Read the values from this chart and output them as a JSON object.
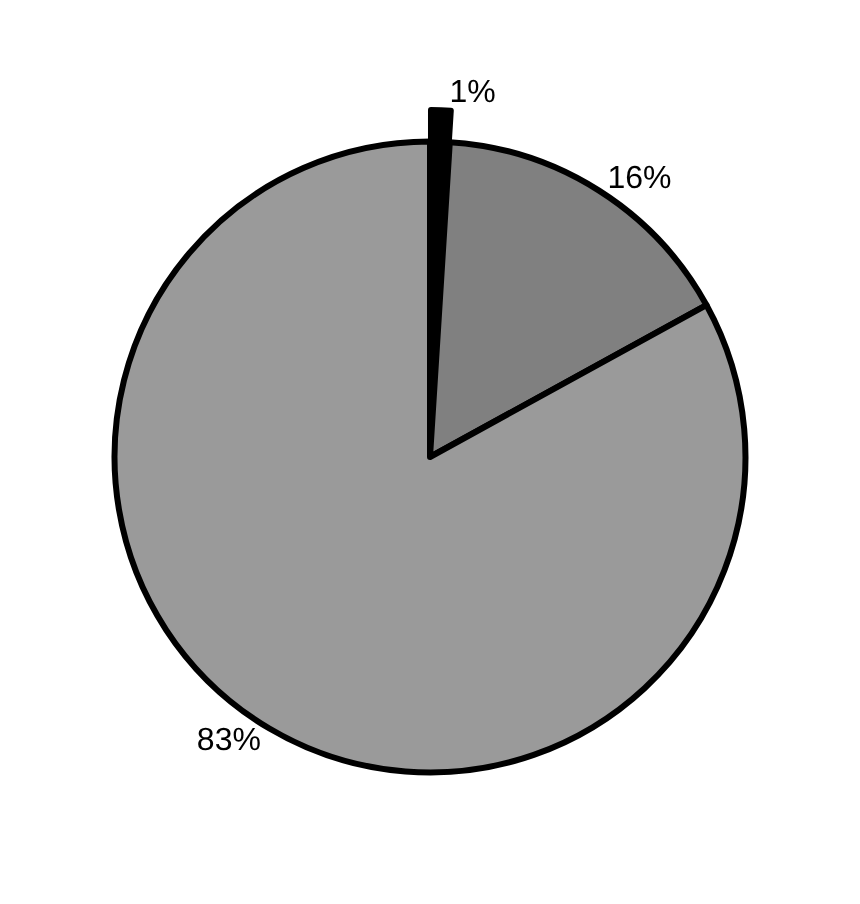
{
  "chart_data": {
    "type": "pie",
    "categories": [
      null,
      null,
      null
    ],
    "values": [
      1,
      16,
      83
    ],
    "value_labels": [
      "1%",
      "16%",
      "83%"
    ],
    "colors": [
      "#000000",
      "#808080",
      "#9a9a9a"
    ],
    "legend": false
  }
}
